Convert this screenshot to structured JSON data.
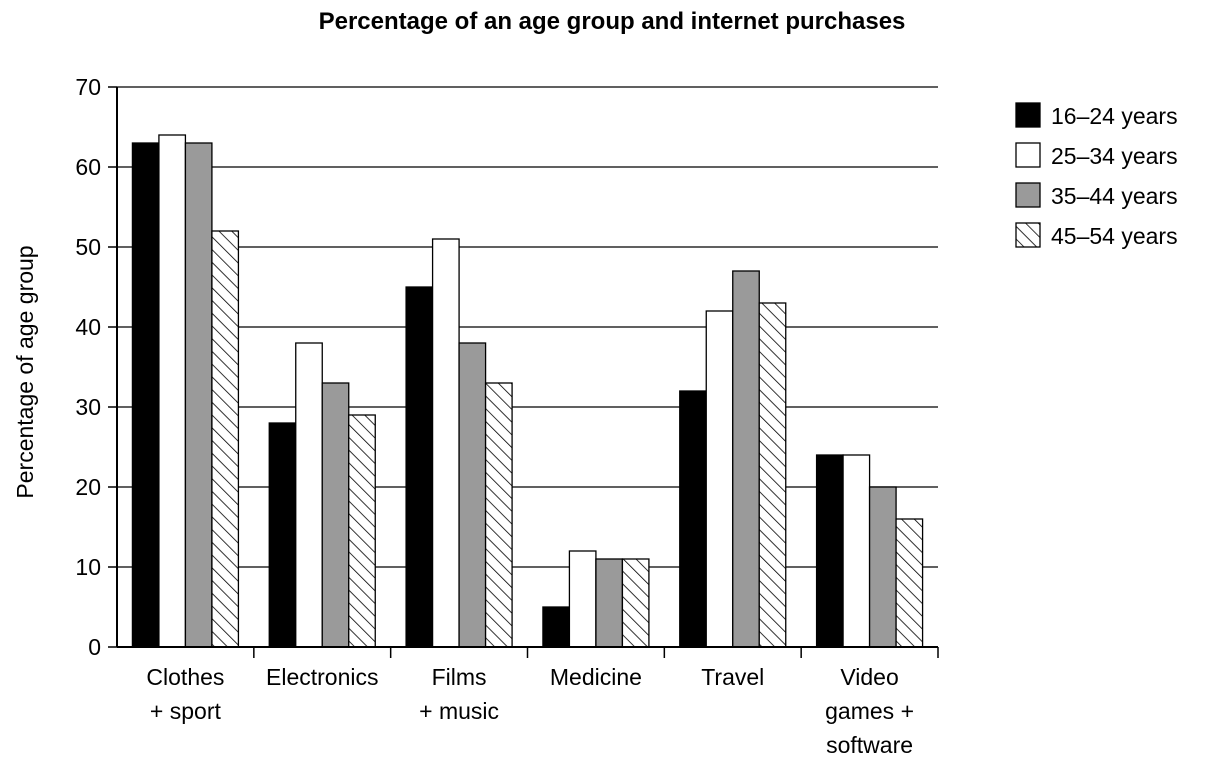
{
  "chart_data": {
    "type": "bar",
    "title": "Percentage of an age group and internet purchases",
    "xlabel": "",
    "ylabel": "Percentage of age group",
    "ylim": [
      0,
      70
    ],
    "yticks": [
      0,
      10,
      20,
      30,
      40,
      50,
      60,
      70
    ],
    "grid": true,
    "legend_position": "right",
    "categories": [
      [
        "Clothes",
        "+ sport"
      ],
      [
        "Electronics"
      ],
      [
        "Films",
        "+ music"
      ],
      [
        "Medicine"
      ],
      [
        "Travel"
      ],
      [
        "Video",
        "games +",
        "software"
      ]
    ],
    "series": [
      {
        "name": "16–24 years",
        "fill": "black",
        "values": [
          63,
          28,
          45,
          5,
          32,
          24
        ]
      },
      {
        "name": "25–34 years",
        "fill": "white",
        "values": [
          64,
          38,
          51,
          12,
          42,
          24
        ]
      },
      {
        "name": "35–44 years",
        "fill": "gray",
        "values": [
          63,
          33,
          38,
          11,
          47,
          20
        ]
      },
      {
        "name": "45–54 years",
        "fill": "hatched",
        "values": [
          52,
          29,
          33,
          11,
          43,
          16
        ]
      }
    ],
    "colors": {
      "black": "#000000",
      "white": "#ffffff",
      "gray": "#9a9a9a",
      "edge": "#000000"
    }
  }
}
